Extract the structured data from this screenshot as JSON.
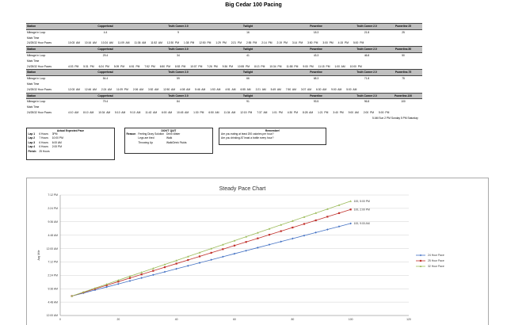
{
  "title": "Big Cedar 100 Pacing",
  "schedule": [
    {
      "header": {
        "label": "Station",
        "stations": [
          "Copperhead",
          "Truth Corner 2.0",
          "Twilight",
          "Powerline",
          "Truth Corner 2.0",
          "Powerline 25"
        ]
      },
      "mileage": {
        "label": "Mileage in Loop",
        "values": [
          "4.4",
          "9",
          "16",
          "18.3",
          "21.8",
          "25"
        ]
      },
      "mark": {
        "label": "Mark Time"
      },
      "paces": {
        "label": "24/25/32 Hour Paces",
        "times": [
          [
            "10:03 AM",
            "10:16 AM",
            "10:24 AM",
            "11:09 AM"
          ],
          [
            "11:36 AM",
            "11:52 AM",
            "12:30 PM"
          ],
          [
            "1:38 PM",
            "12:50 PM"
          ],
          [
            "1:29 PM",
            "2:21 PM",
            "2:55 PM",
            "2:14 PM"
          ],
          [
            "2:19 PM",
            "3:14 PM",
            "3:50 PM"
          ],
          [
            "3:00 PM",
            "4:15 PM"
          ],
          [
            "5:00 PM"
          ]
        ]
      }
    },
    {
      "header": {
        "label": "Station",
        "stations": [
          "Copperhead",
          "Truth Corner 2.0",
          "Twilight",
          "Powerline",
          "Truth Corner 2.0",
          "Powerline-50"
        ]
      },
      "mileage": {
        "label": "Mileage in Loop",
        "values": [
          "29.4",
          "34",
          "41",
          "43.3",
          "46.8",
          "50"
        ]
      },
      "mark": {
        "label": "Mark Time"
      },
      "paces": {
        "label": "24/25/32 Hour Paces",
        "times": [
          [
            "4:03 PM",
            "5:31 PM",
            "6:24 PM",
            "5:09 PM"
          ],
          [
            "6:51 PM",
            "7:52 PM",
            "6:50 PM"
          ],
          [
            "8:53 PM",
            "10:07 PM"
          ],
          [
            "7:26 PM",
            "9:36 PM",
            "10:55 PM",
            "8:13 PM"
          ],
          [
            "10:34 PM",
            "11:58 PM",
            "9:00 PM"
          ],
          [
            "11:15 PM",
            "1:00 AM"
          ],
          [
            "10:00 PM"
          ]
        ]
      }
    },
    {
      "header": {
        "label": "Station",
        "stations": [
          "Copperhead",
          "Truth Corner 2.0",
          "Twilight",
          "Powerline",
          "Truth Corner 2.0",
          "Powerline-75"
        ]
      },
      "mileage": {
        "label": "Mileage in Loop",
        "values": [
          "54.4",
          "59",
          "66",
          "68.3",
          "71.8",
          "75"
        ]
      },
      "mark": {
        "label": "Mark Time"
      },
      "paces": {
        "label": "24/25/32 Hour Paces",
        "times": [
          [
            "12:03 AM",
            "12:46 AM",
            "2:24 AM",
            "11:09 PM"
          ],
          [
            "2:06 AM",
            "3:52 AM",
            "12:50 AM"
          ],
          [
            "4:08 AM",
            "5:46 AM"
          ],
          [
            "1:53 AM",
            "4:51 AM",
            "6:55 AM"
          ],
          [
            "2:21 AM",
            "5:49 AM",
            "7:50 AM"
          ],
          [
            "3:07 AM",
            "6:30 AM",
            "9:00 AM"
          ],
          [
            "5:00 AM"
          ]
        ]
      }
    },
    {
      "header": {
        "label": "Station",
        "stations": [
          "Copperhead",
          "Truth Corner 2.0",
          "Twilight",
          "Powerline",
          "Truth Corner 2.0",
          "Powerline-100"
        ]
      },
      "mileage": {
        "label": "Mileage in Loop",
        "values": [
          "79.4",
          "84",
          "91",
          "93.5",
          "96.8",
          "100"
        ]
      },
      "mark": {
        "label": "Mark Time"
      },
      "paces": {
        "label": "24/25/32 Hour Paces",
        "times": [
          [
            "4:10 AM",
            "8:10 AM",
            "10:34 AM"
          ],
          [
            "5:10 AM",
            "9:10 AM",
            "11:42 AM"
          ],
          [
            "6:00 AM",
            "10:45 AM",
            "1:30 PM"
          ],
          [
            "6:50 AM",
            "11:34 AM",
            "12:15 PM"
          ],
          [
            "7:37 AM",
            "1:01 PM",
            "4:30 PM"
          ],
          [
            "8:28 AM",
            "1:21 PM",
            "3:40 PM"
          ],
          [
            "9:00 AM",
            "2:00 PM",
            "5:00 PM"
          ]
        ]
      }
    }
  ],
  "finish_note": "5 AM Sun  2 PM Sunday   5 PM Saturday",
  "expected_pace": {
    "title": "Actual Expected Pace",
    "rows": [
      [
        "Lap 1",
        "6 Hours",
        "3PM"
      ],
      [
        "Lap 2",
        "7 Hours",
        "10:00 PM"
      ],
      [
        "Lap 3",
        "6 Hours",
        "6:00 AM"
      ],
      [
        "Lap 4",
        "6 Hours",
        "2:00 PM"
      ],
      [
        "Finish:",
        "25 Hours",
        ""
      ]
    ]
  },
  "dont_quit": {
    "title": "DON'T QUIT",
    "rows": [
      [
        "Reason",
        "Feeling Dizzy Solution",
        "Drink Water"
      ],
      [
        "",
        "Legs are tired",
        "Walk"
      ],
      [
        "",
        "Throwing Up",
        "Walk/Drink Fluids"
      ]
    ]
  },
  "remember": {
    "title": "Remember!",
    "lines": [
      "Are you eating at least 200 calories per hour?",
      "Are you drinking AT least a bottle every hour?"
    ]
  },
  "chart_data": {
    "type": "line",
    "title": "Steady Pace Chart",
    "xlabel": "",
    "ylabel": "Avg Mile",
    "xlim": [
      0,
      120
    ],
    "xticks": [
      "0",
      "20",
      "40",
      "60",
      "80",
      "100",
      "120"
    ],
    "yticks": [
      "12:00 AM",
      "4:48 AM",
      "9:36 AM",
      "2:24 PM",
      "7:12 PM",
      "12:00 AM",
      "4:48 AM",
      "9:36 AM",
      "2:24 PM",
      "7:12 PM"
    ],
    "ytick_values": [
      0,
      4.8,
      9.6,
      14.4,
      19.2,
      24,
      28.8,
      33.6,
      38.4,
      43.2
    ],
    "x": [
      4,
      8,
      12,
      16,
      20,
      24,
      28,
      32,
      36,
      40,
      44,
      48,
      52,
      56,
      60,
      64,
      68,
      72,
      76,
      80,
      84,
      88,
      92,
      96,
      100
    ],
    "series": [
      {
        "name": "24 Hour Pace",
        "color": "#4472c4",
        "marker": "diamond",
        "start_hours": 6.96,
        "end_hours": 33.0,
        "end_label": "100, 9:00 AM"
      },
      {
        "name": "25 Hour Pace",
        "color": "#c0302b",
        "marker": "square",
        "start_hours": 6.96,
        "end_hours": 38.0,
        "end_label": "100, 2:00 PM"
      },
      {
        "name": "32 Hour Pace",
        "color": "#9bbb59",
        "marker": "triangle",
        "start_hours": 6.96,
        "end_hours": 41.0,
        "end_label": "100, 5:00 PM"
      }
    ],
    "legend_position": "right"
  }
}
